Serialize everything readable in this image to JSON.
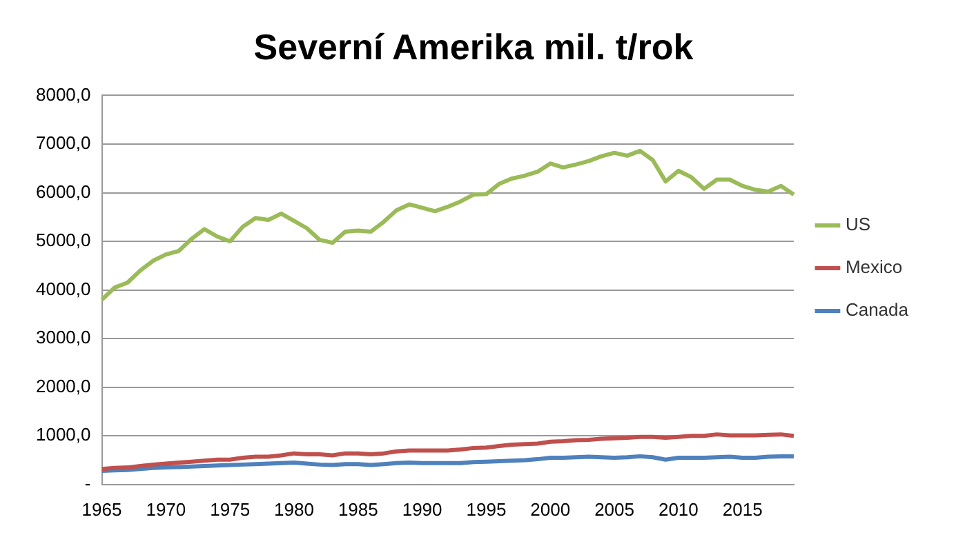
{
  "chart_data": {
    "type": "line",
    "title": "Severní Amerika mil. t/rok",
    "categories": [
      "1965",
      null,
      null,
      null,
      null,
      "1970",
      null,
      null,
      null,
      null,
      "1975",
      null,
      null,
      null,
      null,
      "1980",
      null,
      null,
      null,
      null,
      "1985",
      null,
      null,
      null,
      null,
      "1990",
      null,
      null,
      null,
      null,
      "1995",
      null,
      null,
      null,
      null,
      "2000",
      null,
      null,
      null,
      null,
      "2005",
      null,
      null,
      null,
      null,
      "2010",
      null,
      null,
      null,
      null,
      "2015",
      null,
      null,
      null,
      null
    ],
    "series": [
      {
        "name": "US",
        "color": "#9bbb59",
        "values": [
          3800,
          4050,
          4150,
          4400,
          4600,
          4730,
          4800,
          5050,
          5250,
          5100,
          5000,
          5300,
          5480,
          5440,
          5570,
          5420,
          5270,
          5030,
          4970,
          5200,
          5220,
          5200,
          5400,
          5640,
          5760,
          5690,
          5620,
          5710,
          5820,
          5960,
          5970,
          6180,
          6290,
          6350,
          6430,
          6600,
          6520,
          6580,
          6650,
          6750,
          6820,
          6760,
          6860,
          6670,
          6230,
          6450,
          6320,
          6080,
          6270,
          6270,
          6140,
          6060,
          6020,
          6140,
          5960
        ]
      },
      {
        "name": "Mexico",
        "color": "#c0504d",
        "values": [
          320,
          340,
          350,
          380,
          410,
          430,
          450,
          470,
          490,
          510,
          510,
          550,
          570,
          570,
          600,
          640,
          620,
          620,
          600,
          640,
          640,
          620,
          640,
          680,
          700,
          700,
          700,
          700,
          720,
          750,
          760,
          790,
          820,
          830,
          840,
          880,
          890,
          910,
          920,
          940,
          950,
          960,
          980,
          980,
          960,
          980,
          1000,
          1000,
          1030,
          1010,
          1010,
          1010,
          1020,
          1030,
          1000
        ]
      },
      {
        "name": "Canada",
        "color": "#4f81bd",
        "values": [
          280,
          290,
          300,
          320,
          340,
          350,
          360,
          370,
          380,
          390,
          400,
          410,
          420,
          430,
          440,
          450,
          430,
          410,
          400,
          420,
          420,
          400,
          420,
          440,
          450,
          440,
          440,
          440,
          440,
          460,
          470,
          480,
          490,
          500,
          520,
          550,
          550,
          560,
          570,
          560,
          550,
          560,
          580,
          560,
          510,
          550,
          550,
          550,
          560,
          570,
          550,
          550,
          570,
          580,
          580
        ]
      }
    ],
    "ylim": [
      0,
      8000
    ],
    "yticks": [
      {
        "value": 0,
        "label": "-"
      },
      {
        "value": 1000,
        "label": "1000,0"
      },
      {
        "value": 2000,
        "label": "2000,0"
      },
      {
        "value": 3000,
        "label": "3000,0"
      },
      {
        "value": 4000,
        "label": "4000,0"
      },
      {
        "value": 5000,
        "label": "5000,0"
      },
      {
        "value": 6000,
        "label": "6000,0"
      },
      {
        "value": 7000,
        "label": "7000,0"
      },
      {
        "value": 8000,
        "label": "8000,0"
      }
    ],
    "grid": "y",
    "legend": "right",
    "marker": "none",
    "line_style": "solid"
  }
}
